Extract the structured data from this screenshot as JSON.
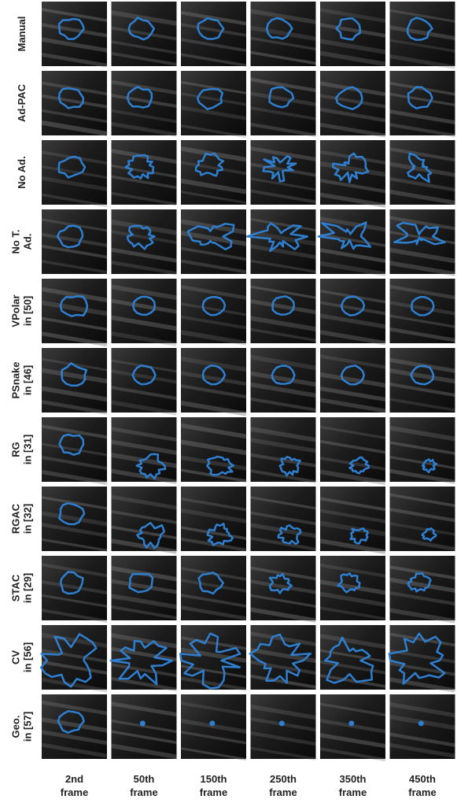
{
  "rows": [
    {
      "label": [
        "Manual"
      ]
    },
    {
      "label": [
        "Ad-PAC"
      ]
    },
    {
      "label": [
        "No Ad."
      ]
    },
    {
      "label": [
        "No T.",
        "Ad."
      ]
    },
    {
      "label": [
        "VPolar",
        "in [50]"
      ]
    },
    {
      "label": [
        "PSnake",
        "in [46]"
      ]
    },
    {
      "label": [
        "RG",
        "in [31]"
      ]
    },
    {
      "label": [
        "RGAC",
        "in [32]"
      ]
    },
    {
      "label": [
        "STAC",
        "in [29]"
      ]
    },
    {
      "label": [
        "CV",
        "in [56]"
      ]
    },
    {
      "label": [
        "Geo.",
        "in [57]"
      ]
    }
  ],
  "columns": [
    {
      "label": [
        "2nd",
        "frame"
      ]
    },
    {
      "label": [
        "50th",
        "frame"
      ]
    },
    {
      "label": [
        "150th",
        "frame"
      ]
    },
    {
      "label": [
        "250th",
        "frame"
      ]
    },
    {
      "label": [
        "350th",
        "frame"
      ]
    },
    {
      "label": [
        "450th",
        "frame"
      ]
    }
  ]
}
